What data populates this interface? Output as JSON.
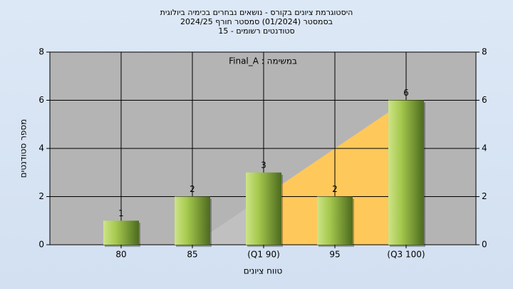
{
  "chart_data": {
    "type": "bar",
    "title": [
      "היסטוגרמת ציונים בקורס - נושאים נבחרים בכימיה ביולוגית",
      "בסמסטר (01/2024) סמסטר חורף 2024/25",
      "סטודנטים רשומים - 15"
    ],
    "annotation": "במשימה : Final_A",
    "x_label": "טווח ציונים",
    "y_label": "מספר סטודנטים",
    "categories": [
      "80",
      "85",
      "(Q1 90)",
      "95",
      "(Q3 100)"
    ],
    "values": [
      1,
      2,
      3,
      2,
      6
    ],
    "areas": [
      {
        "color": "#c0c0c0",
        "values": [
          null,
          0,
          2,
          null,
          null
        ]
      },
      {
        "color": "#ffc85a",
        "values": [
          null,
          null,
          2,
          4,
          6
        ]
      }
    ],
    "ylim": [
      0,
      8
    ],
    "yticks": [
      0,
      2,
      4,
      6,
      8
    ],
    "y2lim": [
      0,
      8
    ],
    "y2ticks": [
      0,
      2,
      4,
      6,
      8
    ],
    "grid": true
  }
}
